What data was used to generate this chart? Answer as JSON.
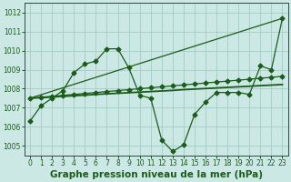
{
  "bg_color": "#cce8e4",
  "grid_color": "#aad0ca",
  "line_color": "#1a5c1a",
  "title": "Graphe pression niveau de la mer (hPa)",
  "xlim": [
    -0.5,
    23.5
  ],
  "ylim": [
    1004.5,
    1012.5
  ],
  "yticks": [
    1005,
    1006,
    1007,
    1008,
    1009,
    1010,
    1011,
    1012
  ],
  "xticks": [
    0,
    1,
    2,
    3,
    4,
    5,
    6,
    7,
    8,
    9,
    10,
    11,
    12,
    13,
    14,
    15,
    16,
    17,
    18,
    19,
    20,
    21,
    22,
    23
  ],
  "line1_x": [
    0,
    1,
    2,
    3,
    4,
    5,
    6,
    7,
    8,
    9,
    10,
    11,
    12,
    13,
    14,
    15,
    16,
    17,
    18,
    19,
    20,
    21,
    22,
    23
  ],
  "line1_y": [
    1006.3,
    1007.1,
    1007.5,
    1007.9,
    1008.85,
    1009.3,
    1009.45,
    1010.1,
    1010.1,
    1009.1,
    1007.65,
    1007.5,
    1005.3,
    1004.7,
    1005.05,
    1006.65,
    1007.3,
    1007.8,
    1007.8,
    1007.8,
    1007.7,
    1009.2,
    1009.0,
    1011.7
  ],
  "line2_x": [
    0,
    1,
    2,
    3,
    4,
    5,
    6,
    7,
    8,
    9,
    10,
    11,
    12,
    13,
    14,
    15,
    16,
    17,
    18,
    19,
    20,
    21,
    22,
    23
  ],
  "line2_y": [
    1007.5,
    1007.55,
    1007.6,
    1007.65,
    1007.7,
    1007.75,
    1007.8,
    1007.85,
    1007.9,
    1007.95,
    1008.0,
    1008.05,
    1008.1,
    1008.15,
    1008.2,
    1008.25,
    1008.3,
    1008.35,
    1008.4,
    1008.45,
    1008.5,
    1008.55,
    1008.6,
    1008.65
  ],
  "line3_x": [
    0,
    1,
    2,
    3,
    4,
    5,
    6,
    7,
    8,
    9,
    10,
    11,
    12,
    13,
    14,
    15,
    16,
    17,
    18,
    19,
    20,
    21,
    22,
    23
  ],
  "line3_y": [
    1007.5,
    1007.53,
    1007.56,
    1007.6,
    1007.63,
    1007.66,
    1007.7,
    1007.73,
    1007.76,
    1007.79,
    1007.82,
    1007.85,
    1007.88,
    1007.91,
    1007.95,
    1007.98,
    1008.01,
    1008.04,
    1008.07,
    1008.1,
    1008.13,
    1008.16,
    1008.19,
    1008.22
  ],
  "line4_x": [
    0,
    23
  ],
  "line4_y": [
    1007.5,
    1011.7
  ],
  "title_fontsize": 7.5,
  "tick_fontsize": 5.5
}
